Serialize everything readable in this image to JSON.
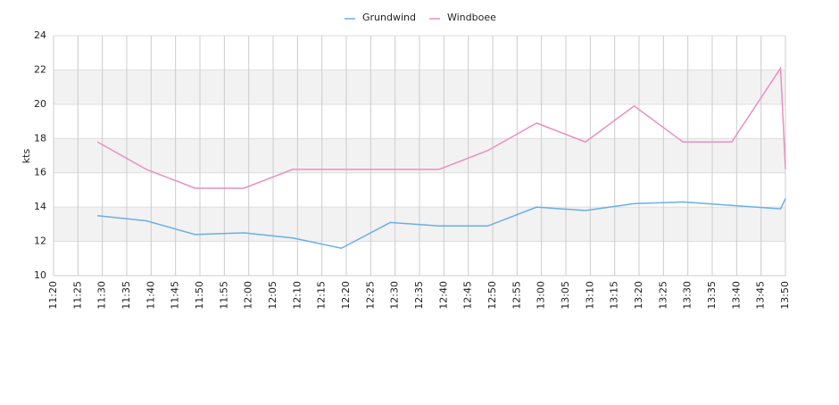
{
  "chart_data": {
    "type": "line",
    "ylabel": "kts",
    "x": [
      "11:29",
      "11:39",
      "11:49",
      "11:59",
      "12:09",
      "12:19",
      "12:29",
      "12:39",
      "12:49",
      "12:59",
      "13:09",
      "13:19",
      "13:29",
      "13:39",
      "13:49",
      "13:50"
    ],
    "series": [
      {
        "name": "Grundwind",
        "color": "#6aaee8",
        "values": [
          13.5,
          13.2,
          12.4,
          12.5,
          12.2,
          11.6,
          13.1,
          12.9,
          12.9,
          14.0,
          13.8,
          14.2,
          14.3,
          14.1,
          13.9,
          14.5
        ]
      },
      {
        "name": "Windboee",
        "color": "#ea8fc1",
        "values": [
          17.8,
          16.2,
          15.1,
          15.1,
          16.2,
          16.2,
          16.2,
          16.2,
          17.3,
          18.9,
          17.8,
          19.9,
          17.8,
          17.8,
          22.1,
          16.2
        ]
      }
    ],
    "xlim": [
      "11:20",
      "13:50"
    ],
    "xticks": [
      "11:20",
      "11:25",
      "11:30",
      "11:35",
      "11:40",
      "11:45",
      "11:50",
      "11:55",
      "12:00",
      "12:05",
      "12:10",
      "12:15",
      "12:20",
      "12:25",
      "12:30",
      "12:35",
      "12:40",
      "12:45",
      "12:50",
      "12:55",
      "13:00",
      "13:05",
      "13:10",
      "13:15",
      "13:20",
      "13:25",
      "13:30",
      "13:35",
      "13:40",
      "13:45",
      "13:50"
    ],
    "ylim": [
      10,
      24
    ],
    "yticks": [
      10,
      12,
      14,
      16,
      18,
      20,
      22,
      24
    ],
    "grid": true,
    "legend": "top"
  }
}
